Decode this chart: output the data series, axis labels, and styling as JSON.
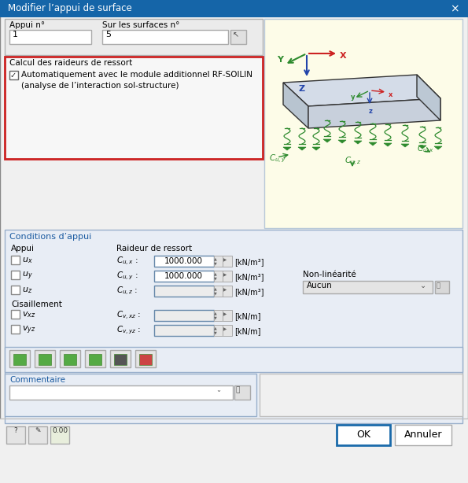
{
  "title": "Modifier l’appui de surface",
  "bg_color": "#f0f0f0",
  "title_bar_color": "#1565a8",
  "title_text_color": "#ffffff",
  "section_bg": "#dce8f5",
  "field_bg": "#ffffff",
  "red_border_color": "#cc2222",
  "green_color": "#2d8a2d",
  "blue_axis_color": "#2244aa",
  "red_axis_color": "#cc2222",
  "green_axis_color": "#2d8a2d",
  "light_yellow_bg": "#fdfce8",
  "panel_bg": "#e8edf5",
  "panel_border": "#9ab0cc",
  "checkbox_label1": "Automatiquement avec le module additionnel RF-SOILIN",
  "checkbox_label2": "(analyse de l’interaction sol-structure)",
  "section1_title": "Calcul des raideurs de ressort",
  "conditions_title": "Conditions d’appui",
  "appui_label": "Appui",
  "raideur_label": "Raideur de ressort",
  "nonlin_label": "Non-linéarité",
  "cisaillement_label": "Cisaillement",
  "commentaire_label": "Commentaire",
  "aucun_label": "Aucun",
  "ok_label": "OK",
  "annuler_label": "Annuler",
  "appui_n_label": "Appui n°",
  "surfaces_n_label": "Sur les surfaces n°",
  "appui_value": "1",
  "surfaces_value": "5",
  "value_ux": "1000.000",
  "value_uy": "1000.000",
  "unit_knm3": "[kN/m³]",
  "unit_knm": "[kN/m]"
}
